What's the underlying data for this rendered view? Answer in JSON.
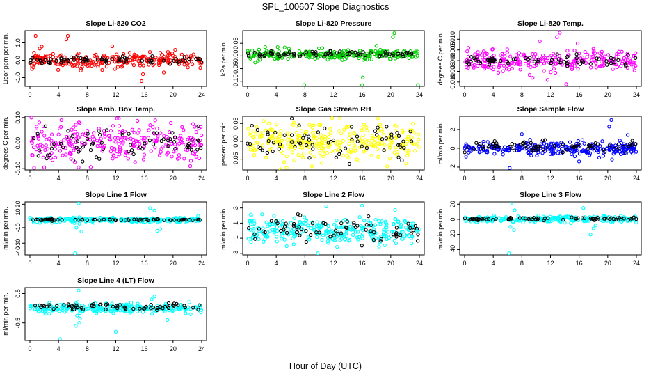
{
  "page": {
    "title": "SPL_100607  Slope Diagnostics",
    "xlabel": "Hour of Day (UTC)"
  },
  "colors": {
    "red": "#ff0000",
    "green": "#00cc00",
    "magenta": "#ff00ff",
    "yellow": "#ffff00",
    "blue": "#0000ff",
    "cyan": "#00ffff",
    "black": "#000000"
  },
  "chart_data": [
    {
      "id": "co2",
      "type": "scatter",
      "title": "Slope Li-820 CO2",
      "ylabel": "Licor ppm per min.",
      "xlim": [
        0,
        24
      ],
      "xticks": [
        0,
        4,
        8,
        12,
        16,
        20,
        24
      ],
      "ylim": [
        -1.5,
        1.7
      ],
      "yticks": [
        -1.0,
        0.0,
        1.0
      ],
      "ytick_labels": [
        "-1.0",
        "0.0",
        "1.0"
      ],
      "series": [
        {
          "name": "all",
          "color": "red",
          "seed": 11,
          "center": 0.0,
          "spread": 0.22,
          "density": 260,
          "outliers": [
            [
              0.8,
              1.4
            ],
            [
              0.3,
              -0.5
            ],
            [
              5.3,
              1.4
            ],
            [
              5.1,
              1.2
            ],
            [
              7.1,
              -0.6
            ],
            [
              15.6,
              -1.2
            ],
            [
              15.8,
              -0.8
            ],
            [
              11.5,
              0.8
            ],
            [
              18.7,
              -0.7
            ],
            [
              20.3,
              0.6
            ]
          ]
        },
        {
          "name": "hourly",
          "color": "black",
          "seed": 12,
          "center": 0.0,
          "spread": 0.12,
          "density": 70,
          "outliers": []
        }
      ]
    },
    {
      "id": "pressure",
      "type": "scatter",
      "title": "Slope Li-820 Pressure",
      "ylabel": "kPa per min.",
      "xlim": [
        0,
        24
      ],
      "xticks": [
        0,
        4,
        8,
        12,
        16,
        20,
        24
      ],
      "ylim": [
        -0.12,
        0.1
      ],
      "yticks": [
        -0.1,
        -0.05,
        0.0,
        0.05
      ],
      "ytick_labels": [
        "-0.10",
        "-0.05",
        "0.00",
        "0.05"
      ],
      "series": [
        {
          "name": "all",
          "color": "green",
          "seed": 21,
          "center": 0.005,
          "spread": 0.01,
          "density": 260,
          "outliers": [
            [
              7.9,
              -0.115
            ],
            [
              16.1,
              -0.085
            ],
            [
              16.0,
              -0.115
            ],
            [
              20.5,
              0.09
            ],
            [
              20.3,
              0.075
            ],
            [
              23.8,
              -0.115
            ],
            [
              18.0,
              0.04
            ],
            [
              4.2,
              0.035
            ]
          ]
        },
        {
          "name": "hourly",
          "color": "black",
          "seed": 22,
          "center": 0.008,
          "spread": 0.006,
          "density": 70,
          "outliers": []
        }
      ]
    },
    {
      "id": "temp",
      "type": "scatter",
      "title": "Slope Li-820 Temp.",
      "ylabel": "degrees C per min.",
      "xlim": [
        0,
        24
      ],
      "xticks": [
        0,
        4,
        8,
        12,
        16,
        20,
        24
      ],
      "ylim": [
        -0.012,
        0.014
      ],
      "yticks": [
        -0.01,
        -0.005,
        0.0,
        0.005,
        0.01
      ],
      "ytick_labels": [
        "-0.010",
        "-0.005",
        "0.000",
        "0.005",
        "0.010"
      ],
      "series": [
        {
          "name": "all",
          "color": "magenta",
          "seed": 31,
          "center": 0.0,
          "spread": 0.0025,
          "density": 260,
          "outliers": [
            [
              13.3,
              0.013
            ],
            [
              12.9,
              0.011
            ],
            [
              14.2,
              -0.011
            ],
            [
              11.6,
              -0.009
            ],
            [
              9.5,
              -0.008
            ],
            [
              15.8,
              0.008
            ],
            [
              10.5,
              0.009
            ]
          ]
        },
        {
          "name": "hourly",
          "color": "black",
          "seed": 32,
          "center": 0.0,
          "spread": 0.0015,
          "density": 70,
          "outliers": []
        }
      ]
    },
    {
      "id": "ambbox",
      "type": "scatter",
      "title": "Slope Amb. Box Temp.",
      "ylabel": "degrees C per min.",
      "xlim": [
        0,
        24
      ],
      "xticks": [
        0,
        4,
        8,
        12,
        16,
        20,
        24
      ],
      "ylim": [
        -0.105,
        0.105
      ],
      "yticks": [
        -0.1,
        0.0,
        0.1
      ],
      "ytick_labels": [
        "-0.10",
        "0.00",
        "0.10"
      ],
      "series": [
        {
          "name": "all",
          "color": "magenta",
          "seed": 41,
          "center": 0.0,
          "spread": 0.04,
          "density": 260,
          "outliers": [
            [
              0.2,
              0.1
            ],
            [
              2.0,
              -0.095
            ],
            [
              6.8,
              -0.095
            ],
            [
              4.4,
              0.09
            ],
            [
              22.4,
              -0.09
            ]
          ]
        },
        {
          "name": "hourly",
          "color": "black",
          "seed": 42,
          "center": 0.0,
          "spread": 0.035,
          "density": 70,
          "outliers": []
        }
      ]
    },
    {
      "id": "rh",
      "type": "scatter",
      "title": "Slope Gas Stream RH",
      "ylabel": "percent per min.",
      "xlim": [
        0,
        24
      ],
      "xticks": [
        0,
        4,
        8,
        12,
        16,
        20,
        24
      ],
      "ylim": [
        -0.08,
        0.07
      ],
      "yticks": [
        -0.05,
        0.0,
        0.05
      ],
      "ytick_labels": [
        "-0.05",
        "0.00",
        "0.05"
      ],
      "series": [
        {
          "name": "all",
          "color": "yellow",
          "seed": 51,
          "center": 0.0,
          "spread": 0.025,
          "density": 300,
          "outliers": [
            [
              4.6,
              -0.078
            ],
            [
              9.0,
              -0.07
            ],
            [
              11.8,
              0.065
            ],
            [
              19.5,
              -0.07
            ]
          ]
        },
        {
          "name": "hourly",
          "color": "black",
          "seed": 52,
          "center": 0.0,
          "spread": 0.025,
          "density": 70,
          "outliers": []
        }
      ]
    },
    {
      "id": "sampleflow",
      "type": "scatter",
      "title": "Slope Sample Flow",
      "ylabel": "ml/min per min.",
      "xlim": [
        0,
        24
      ],
      "xticks": [
        0,
        4,
        8,
        12,
        16,
        20,
        24
      ],
      "ylim": [
        -2.3,
        3.4
      ],
      "yticks": [
        -2,
        0,
        2
      ],
      "ytick_labels": [
        "-2",
        "0",
        "2"
      ],
      "series": [
        {
          "name": "all",
          "color": "blue",
          "seed": 61,
          "center": 0.0,
          "spread": 0.35,
          "density": 280,
          "outliers": [
            [
              20.5,
              3.0
            ],
            [
              20.2,
              2.3
            ],
            [
              8.0,
              1.5
            ],
            [
              6.3,
              -2.1
            ],
            [
              22.8,
              1.4
            ],
            [
              0.2,
              -0.9
            ],
            [
              18.8,
              -1.0
            ],
            [
              20.6,
              -1.2
            ]
          ]
        },
        {
          "name": "hourly",
          "color": "black",
          "seed": 62,
          "center": 0.2,
          "spread": 0.3,
          "density": 70,
          "outliers": []
        }
      ]
    },
    {
      "id": "line1",
      "type": "scatter",
      "title": "Slope Line 1 Flow",
      "ylabel": "ml/min per min.",
      "xlim": [
        0,
        24
      ],
      "xticks": [
        0,
        4,
        8,
        12,
        16,
        20,
        24
      ],
      "ylim": [
        -45,
        23
      ],
      "yticks": [
        -40,
        -30,
        -10,
        10,
        20
      ],
      "ytick_labels": [
        "-40",
        "-30",
        "-10",
        "10",
        "20"
      ],
      "series": [
        {
          "name": "all",
          "color": "cyan",
          "seed": 71,
          "center": 0.0,
          "spread": 1.5,
          "density": 260,
          "outliers": [
            [
              6.8,
              21
            ],
            [
              6.5,
              -10
            ],
            [
              7.2,
              -15
            ],
            [
              6.3,
              -43
            ],
            [
              17.8,
              -14
            ],
            [
              18.2,
              -12
            ],
            [
              16.8,
              15
            ],
            [
              17.4,
              12
            ],
            [
              6.9,
              -5
            ],
            [
              23.5,
              5
            ]
          ]
        },
        {
          "name": "hourly",
          "color": "black",
          "seed": 72,
          "center": 0.0,
          "spread": 0.4,
          "density": 70,
          "outliers": []
        }
      ]
    },
    {
      "id": "line2",
      "type": "scatter",
      "title": "Slope Line 2 Flow",
      "ylabel": "ml/min per min.",
      "xlim": [
        0,
        24
      ],
      "xticks": [
        0,
        4,
        8,
        12,
        16,
        20,
        24
      ],
      "ylim": [
        -3.2,
        3.8
      ],
      "yticks": [
        -3,
        -1,
        1,
        3
      ],
      "ytick_labels": [
        "-3",
        "-1",
        "1",
        "3"
      ],
      "series": [
        {
          "name": "all",
          "color": "cyan",
          "seed": 81,
          "center": 0.0,
          "spread": 0.9,
          "density": 300,
          "outliers": [
            [
              9.8,
              -3.0
            ],
            [
              11.0,
              3.2
            ],
            [
              16.0,
              3.3
            ],
            [
              0.5,
              2.0
            ]
          ]
        },
        {
          "name": "hourly",
          "color": "black",
          "seed": 82,
          "center": 0.0,
          "spread": 0.8,
          "density": 70,
          "outliers": []
        }
      ]
    },
    {
      "id": "line3",
      "type": "scatter",
      "title": "Slope Line 3 Flow",
      "ylabel": "ml/min per min.",
      "xlim": [
        0,
        24
      ],
      "xticks": [
        0,
        4,
        8,
        12,
        16,
        20,
        24
      ],
      "ylim": [
        -47,
        23
      ],
      "yticks": [
        -40,
        -20,
        0,
        20
      ],
      "ytick_labels": [
        "-40",
        "-20",
        "0",
        "20"
      ],
      "series": [
        {
          "name": "all",
          "color": "cyan",
          "seed": 91,
          "center": 0.0,
          "spread": 2.0,
          "density": 260,
          "outliers": [
            [
              6.6,
              22
            ],
            [
              6.2,
              -45
            ],
            [
              6.4,
              -10
            ],
            [
              7.0,
              12
            ],
            [
              16.6,
              15
            ],
            [
              18.0,
              -12
            ],
            [
              17.6,
              -20
            ],
            [
              18.3,
              -8
            ],
            [
              6.9,
              -14
            ]
          ]
        },
        {
          "name": "hourly",
          "color": "black",
          "seed": 92,
          "center": 0.5,
          "spread": 1.0,
          "density": 70,
          "outliers": []
        }
      ]
    },
    {
      "id": "line4",
      "type": "scatter",
      "title": "Slope Line 4 (LT) Flow",
      "ylabel": "ml/min per min.",
      "xlim": [
        0,
        24
      ],
      "xticks": [
        0,
        4,
        8,
        12,
        16,
        20,
        24
      ],
      "ylim": [
        -1.1,
        0.7
      ],
      "yticks": [
        -0.5,
        0.5
      ],
      "ytick_labels": [
        "-0.5",
        "0.5"
      ],
      "series": [
        {
          "name": "all",
          "color": "cyan",
          "seed": 101,
          "center": 0.0,
          "spread": 0.08,
          "density": 260,
          "outliers": [
            [
              6.8,
              0.6
            ],
            [
              6.6,
              -0.25
            ],
            [
              7.0,
              -0.35
            ],
            [
              4.2,
              -1.05
            ],
            [
              6.9,
              -0.5
            ],
            [
              12.0,
              -0.8
            ],
            [
              17.0,
              0.3
            ],
            [
              17.4,
              0.4
            ],
            [
              19.2,
              -0.4
            ],
            [
              6.4,
              -0.6
            ]
          ]
        },
        {
          "name": "hourly",
          "color": "black",
          "seed": 102,
          "center": 0.05,
          "spread": 0.05,
          "density": 70,
          "outliers": []
        }
      ]
    }
  ]
}
